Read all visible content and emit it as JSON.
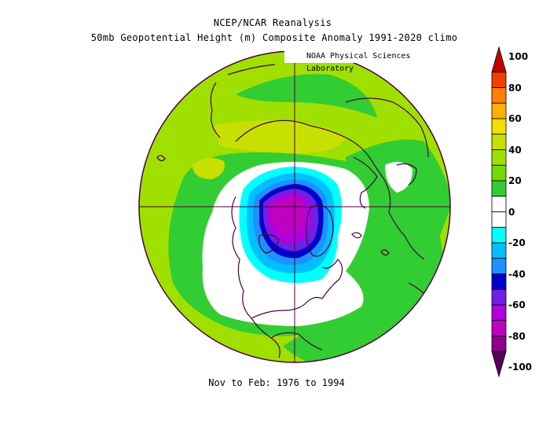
{
  "title_line1": "NCEP/NCAR Reanalysis",
  "title_line2": "50mb Geopotential Height (m) Composite Anomaly 1991-2020 climo",
  "credit": "NOAA Physical Sciences Laboratory",
  "footer": "Nov to Feb: 1976 to 1994",
  "colorbar": {
    "ticks": [
      "100",
      "80",
      "60",
      "40",
      "20",
      "0",
      "-20",
      "-40",
      "-60",
      "-80",
      "-100"
    ],
    "bins": [
      {
        "range": "90 to 100",
        "color": "#c00000"
      },
      {
        "range": "80 to 90",
        "color": "#f04000"
      },
      {
        "range": "70 to 80",
        "color": "#ff8000"
      },
      {
        "range": "60 to 70",
        "color": "#ffb000"
      },
      {
        "range": "50 to 60",
        "color": "#f0e000"
      },
      {
        "range": "40 to 50",
        "color": "#c8e000"
      },
      {
        "range": "30 to 40",
        "color": "#a0e000"
      },
      {
        "range": "20 to 30",
        "color": "#70dc00"
      },
      {
        "range": "10 to 20",
        "color": "#32cd32"
      },
      {
        "range": "0 to 10",
        "color": "#ffffff"
      },
      {
        "range": "-10 to 0",
        "color": "#ffffff"
      },
      {
        "range": "-20 to -10",
        "color": "#00ffff"
      },
      {
        "range": "-30 to -20",
        "color": "#00bfff"
      },
      {
        "range": "-40 to -30",
        "color": "#1e90ff"
      },
      {
        "range": "-50 to -40",
        "color": "#0000cd"
      },
      {
        "range": "-60 to -50",
        "color": "#7020e0"
      },
      {
        "range": "-70 to -60",
        "color": "#b000e0"
      },
      {
        "range": "-80 to -70",
        "color": "#c000c0"
      },
      {
        "range": "-90 to -80",
        "color": "#900090"
      },
      {
        "range": "-100 to -90",
        "color": "#5a005a"
      }
    ]
  },
  "map": {
    "projection": "north polar stereographic",
    "field": "50mb geopotential height anomaly",
    "dominant_fill": "#a0e000",
    "outline_color": "#4b0040"
  }
}
